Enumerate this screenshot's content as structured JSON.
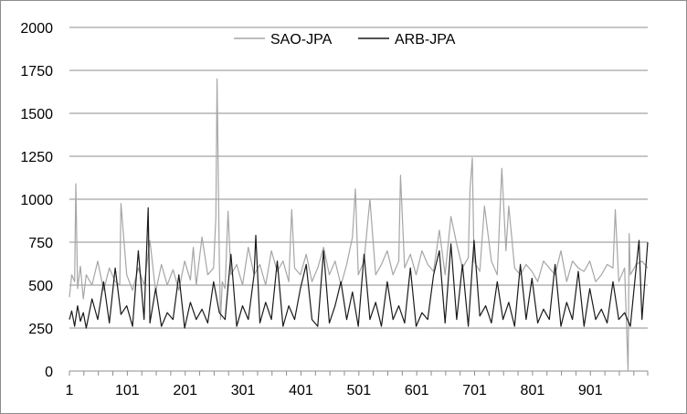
{
  "chart_data": {
    "type": "line",
    "title": "",
    "xlabel": "",
    "ylabel": "",
    "ylim": [
      0,
      2000
    ],
    "xlim": [
      1,
      1000
    ],
    "yticks": [
      0,
      250,
      500,
      750,
      1000,
      1250,
      1500,
      1750,
      2000
    ],
    "ytick_labels": [
      "0",
      "250",
      "500",
      "750",
      "1000",
      "1250",
      "1500",
      "1750",
      "2000"
    ],
    "xtick_labels": [
      "1",
      "101",
      "201",
      "301",
      "401",
      "501",
      "601",
      "701",
      "801",
      "901"
    ],
    "xticks": [
      1,
      101,
      201,
      301,
      401,
      501,
      601,
      701,
      801,
      901
    ],
    "grid": "horizontal",
    "legend": "top-center",
    "series": [
      {
        "name": "SAO-JPA",
        "color": "#a6a6a6",
        "x": [
          1,
          5,
          10,
          12,
          15,
          20,
          25,
          30,
          40,
          50,
          60,
          70,
          80,
          88,
          90,
          100,
          110,
          120,
          130,
          140,
          150,
          160,
          170,
          180,
          190,
          200,
          210,
          215,
          220,
          230,
          240,
          250,
          254,
          256,
          260,
          262,
          265,
          270,
          275,
          280,
          290,
          300,
          310,
          320,
          330,
          340,
          350,
          360,
          370,
          380,
          385,
          390,
          400,
          410,
          420,
          430,
          440,
          450,
          460,
          470,
          480,
          490,
          495,
          500,
          510,
          520,
          530,
          540,
          550,
          560,
          570,
          573,
          580,
          590,
          600,
          610,
          620,
          630,
          640,
          650,
          660,
          670,
          680,
          690,
          693,
          697,
          700,
          710,
          718,
          730,
          740,
          748,
          755,
          760,
          770,
          780,
          790,
          800,
          810,
          820,
          830,
          840,
          850,
          860,
          870,
          880,
          890,
          900,
          910,
          920,
          930,
          940,
          944,
          950,
          960,
          966,
          968,
          970,
          980,
          990,
          1000
        ],
        "values": [
          430,
          560,
          520,
          1090,
          480,
          610,
          420,
          560,
          500,
          640,
          470,
          600,
          520,
          500,
          975,
          560,
          470,
          600,
          500,
          760,
          460,
          620,
          500,
          590,
          470,
          640,
          530,
          720,
          500,
          780,
          560,
          600,
          900,
          1700,
          640,
          300,
          520,
          480,
          930,
          560,
          620,
          500,
          720,
          560,
          620,
          500,
          700,
          580,
          640,
          520,
          940,
          600,
          560,
          680,
          520,
          600,
          720,
          560,
          640,
          500,
          620,
          780,
          1060,
          560,
          640,
          1000,
          560,
          620,
          700,
          560,
          640,
          1140,
          600,
          680,
          560,
          700,
          620,
          580,
          820,
          560,
          900,
          740,
          600,
          660,
          1060,
          1240,
          640,
          580,
          960,
          640,
          560,
          1180,
          700,
          960,
          600,
          560,
          620,
          580,
          520,
          640,
          600,
          560,
          700,
          520,
          640,
          600,
          580,
          640,
          520,
          560,
          620,
          600,
          940,
          520,
          600,
          0,
          800,
          560,
          620,
          640,
          600
        ]
      },
      {
        "name": "ARB-JPA",
        "color": "#1a1a1a",
        "x": [
          1,
          5,
          10,
          15,
          20,
          25,
          30,
          40,
          50,
          60,
          70,
          80,
          90,
          100,
          110,
          120,
          130,
          137,
          140,
          150,
          160,
          170,
          180,
          190,
          200,
          210,
          220,
          230,
          240,
          250,
          260,
          270,
          280,
          290,
          300,
          310,
          320,
          323,
          330,
          340,
          350,
          360,
          370,
          380,
          390,
          400,
          410,
          420,
          430,
          440,
          450,
          460,
          470,
          480,
          490,
          500,
          510,
          520,
          530,
          540,
          550,
          560,
          570,
          580,
          590,
          600,
          610,
          620,
          630,
          640,
          650,
          660,
          670,
          680,
          690,
          700,
          710,
          720,
          730,
          740,
          750,
          760,
          770,
          780,
          790,
          800,
          810,
          820,
          830,
          840,
          850,
          860,
          870,
          880,
          890,
          900,
          910,
          920,
          930,
          940,
          950,
          960,
          970,
          980,
          985,
          990,
          1000
        ],
        "values": [
          300,
          350,
          260,
          380,
          290,
          340,
          250,
          420,
          300,
          520,
          280,
          600,
          330,
          380,
          260,
          700,
          300,
          950,
          280,
          480,
          260,
          340,
          300,
          560,
          250,
          400,
          300,
          360,
          280,
          520,
          340,
          300,
          680,
          260,
          380,
          300,
          560,
          790,
          280,
          400,
          300,
          640,
          260,
          380,
          300,
          480,
          620,
          300,
          260,
          700,
          280,
          380,
          520,
          300,
          460,
          260,
          680,
          300,
          400,
          260,
          520,
          300,
          380,
          280,
          600,
          260,
          340,
          300,
          560,
          700,
          280,
          740,
          300,
          620,
          260,
          760,
          320,
          380,
          280,
          520,
          300,
          400,
          260,
          620,
          300,
          540,
          280,
          360,
          300,
          620,
          260,
          400,
          300,
          580,
          260,
          480,
          300,
          360,
          280,
          520,
          300,
          340,
          260,
          600,
          760,
          300,
          750
        ]
      }
    ]
  }
}
